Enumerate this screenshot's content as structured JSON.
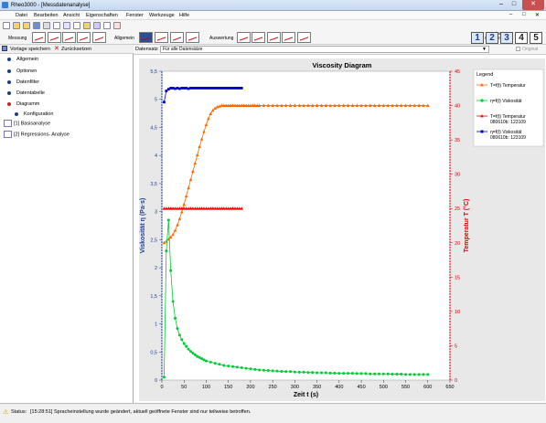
{
  "window": {
    "title": "Rheo3000 - [Messdatenanalyse]"
  },
  "menu": [
    "Datei",
    "Bearbeiten",
    "Ansicht",
    "Eigenschaften",
    "Fenster",
    "Werkzeuge",
    "Hilfe"
  ],
  "toolbar": {
    "measurement_label": "Messung",
    "general_label": "Allgemein",
    "evaluation_label": "Auswertung",
    "programs_label": "Meine Programme",
    "program_buttons": [
      "1",
      "2",
      "3",
      "4",
      "5"
    ]
  },
  "left_panel": {
    "save_template": "Vorlage speichern",
    "reset": "Zurücksetzen",
    "items": [
      "Allgemein",
      "Optionen",
      "Datenfilter",
      "Datentabelle",
      "Diagramm"
    ],
    "subitem": "Konfiguration",
    "analyses": [
      "[1] Basisanalyse",
      "[2] Regressions- Analyse"
    ]
  },
  "dataset": {
    "label": "Datensatz",
    "value": "Für alle Datensätze",
    "original_label": "Original"
  },
  "chart_data": {
    "type": "line",
    "title": "Viscosity Diagram",
    "xlabel": "Zeit t (s)",
    "ylabel_left": "Viskosität η (Pa·s)",
    "ylabel_right": "Temperatur T (°C)",
    "xlim": [
      0,
      650
    ],
    "ylim_left": [
      0,
      5.5
    ],
    "ylim_right": [
      0,
      45
    ],
    "x_ticks": [
      "0",
      "50",
      "100",
      "150",
      "200",
      "250",
      "300",
      "350",
      "400",
      "450",
      "500",
      "550",
      "600",
      "650"
    ],
    "y_left_ticks": [
      "0",
      "0,5",
      "1",
      "1,5",
      "2",
      "2,5",
      "3",
      "3,5",
      "4",
      "4,5",
      "5",
      "5,5"
    ],
    "y_right_ticks": [
      "0",
      "5",
      "10",
      "15",
      "20",
      "25",
      "30",
      "35",
      "40",
      "45"
    ],
    "legend_title": "Legend",
    "legend_placement": "right",
    "series": [
      {
        "name": "T=f(t) Temperatur",
        "axis": "right",
        "color": "#ff6600",
        "marker": "triangle",
        "x": [
          5,
          10,
          15,
          20,
          25,
          30,
          35,
          40,
          45,
          50,
          55,
          60,
          65,
          70,
          75,
          80,
          85,
          90,
          95,
          100,
          105,
          110,
          115,
          120,
          125,
          130,
          135,
          140,
          145,
          150,
          155,
          160,
          165,
          170,
          175,
          180,
          185,
          190,
          195,
          200,
          205,
          210,
          215,
          220,
          230,
          240,
          250,
          260,
          270,
          280,
          290,
          300,
          310,
          320,
          330,
          340,
          350,
          360,
          370,
          380,
          390,
          400,
          410,
          420,
          430,
          440,
          450,
          460,
          470,
          480,
          490,
          500,
          510,
          520,
          530,
          540,
          550,
          560,
          570,
          580,
          590,
          600
        ],
        "y": [
          20,
          20.2,
          20.5,
          20.8,
          21.2,
          21.8,
          22.6,
          23.5,
          24.5,
          25.6,
          26.8,
          28,
          29.2,
          30.4,
          31.6,
          32.8,
          34,
          35.1,
          36.2,
          37.2,
          38.1,
          38.8,
          39.3,
          39.6,
          39.8,
          39.9,
          40,
          40,
          40,
          40,
          40,
          40,
          40,
          40,
          40,
          40,
          40,
          40,
          40,
          40,
          40,
          40,
          40,
          40,
          40,
          40,
          40,
          40,
          40,
          40,
          40,
          40,
          40,
          40,
          40,
          40,
          40,
          40,
          40,
          40,
          40,
          40,
          40,
          40,
          40,
          40,
          40,
          40,
          40,
          40,
          40,
          40,
          40,
          40,
          40,
          40,
          40,
          40,
          40,
          40,
          40,
          40
        ]
      },
      {
        "name": "η=f(t) Viskosität",
        "axis": "left",
        "color": "#00cc33",
        "marker": "circle",
        "x": [
          5,
          10,
          15,
          20,
          25,
          30,
          35,
          40,
          45,
          50,
          55,
          60,
          65,
          70,
          75,
          80,
          85,
          90,
          95,
          100,
          110,
          120,
          130,
          140,
          150,
          160,
          170,
          180,
          190,
          200,
          210,
          220,
          230,
          240,
          250,
          260,
          270,
          280,
          290,
          300,
          310,
          320,
          330,
          340,
          350,
          360,
          370,
          380,
          390,
          400,
          410,
          420,
          430,
          440,
          450,
          460,
          470,
          480,
          490,
          500,
          510,
          520,
          530,
          540,
          550,
          560,
          570,
          580,
          590,
          600
        ],
        "y": [
          0.05,
          2.3,
          2.85,
          1.95,
          1.4,
          1.1,
          0.92,
          0.8,
          0.72,
          0.65,
          0.6,
          0.55,
          0.51,
          0.48,
          0.45,
          0.42,
          0.4,
          0.38,
          0.36,
          0.34,
          0.32,
          0.3,
          0.28,
          0.26,
          0.25,
          0.24,
          0.23,
          0.22,
          0.21,
          0.2,
          0.19,
          0.18,
          0.175,
          0.17,
          0.165,
          0.16,
          0.155,
          0.15,
          0.15,
          0.145,
          0.14,
          0.14,
          0.135,
          0.135,
          0.13,
          0.13,
          0.13,
          0.125,
          0.125,
          0.12,
          0.12,
          0.12,
          0.12,
          0.115,
          0.115,
          0.115,
          0.11,
          0.11,
          0.11,
          0.11,
          0.11,
          0.105,
          0.105,
          0.105,
          0.1,
          0.1,
          0.1,
          0.1,
          0.1,
          0.1
        ]
      },
      {
        "name": "T=f(t) Temperatur 080610b: 123109",
        "axis": "right",
        "color": "#ff0000",
        "marker": "triangle",
        "x": [
          5,
          10,
          15,
          20,
          25,
          30,
          35,
          40,
          45,
          50,
          55,
          60,
          65,
          70,
          75,
          80,
          85,
          90,
          95,
          100,
          105,
          110,
          115,
          120,
          125,
          130,
          135,
          140,
          145,
          150,
          155,
          160,
          165,
          170,
          175,
          180
        ],
        "y": [
          25,
          25,
          25,
          25,
          25,
          25,
          25,
          25,
          25,
          25,
          25,
          25,
          25,
          25,
          25,
          25,
          25,
          25,
          25,
          25,
          25,
          25,
          25,
          25,
          25,
          25,
          25,
          25,
          25,
          25,
          25,
          25,
          25,
          25,
          25,
          25
        ]
      },
      {
        "name": "η=f(t) Viskosität 080610b: 123109",
        "axis": "left",
        "color": "#0000cc",
        "marker": "square",
        "x": [
          5,
          10,
          15,
          20,
          25,
          30,
          35,
          40,
          45,
          50,
          55,
          60,
          65,
          70,
          75,
          80,
          85,
          90,
          95,
          100,
          105,
          110,
          115,
          120,
          125,
          130,
          135,
          140,
          145,
          150,
          155,
          160,
          165,
          170,
          175,
          180
        ],
        "y": [
          4.95,
          5.15,
          5.18,
          5.2,
          5.2,
          5.19,
          5.2,
          5.19,
          5.2,
          5.2,
          5.2,
          5.19,
          5.2,
          5.2,
          5.2,
          5.2,
          5.2,
          5.2,
          5.2,
          5.2,
          5.2,
          5.2,
          5.2,
          5.2,
          5.2,
          5.2,
          5.2,
          5.2,
          5.2,
          5.2,
          5.2,
          5.2,
          5.2,
          5.2,
          5.2,
          5.2
        ]
      }
    ]
  },
  "status": {
    "label": "Status",
    "message": "[15:28:51] Spracheinstellung wurde geändert, aktuell geöffnete Fenster sind nur teilweise betroffen."
  }
}
